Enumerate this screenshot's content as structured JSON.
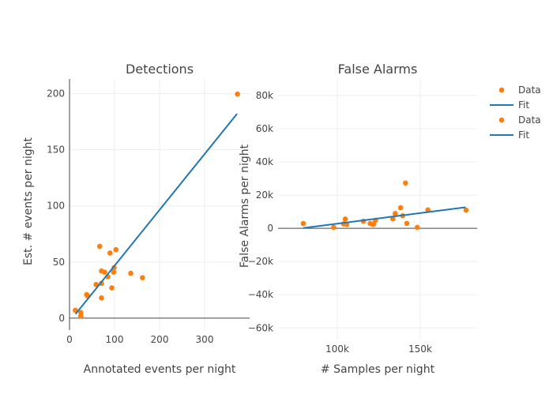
{
  "chart_data": [
    {
      "type": "scatter",
      "title": "Detections",
      "xlabel": "Annotated events per night",
      "ylabel": "Est. # events per night",
      "xlim": [
        0,
        400
      ],
      "ylim": [
        -10.6,
        213
      ],
      "xticks": [
        0,
        100,
        200,
        300
      ],
      "xtick_labels": [
        "0",
        "100",
        "200",
        "300"
      ],
      "yticks": [
        0,
        50,
        100,
        150,
        200
      ],
      "ytick_labels": [
        "0",
        "50",
        "100",
        "150",
        "200"
      ],
      "grid": true,
      "series": [
        {
          "name": "Data",
          "kind": "markers",
          "color": "#ff7f0e",
          "x": [
            373,
            67,
            90,
            103,
            71,
            78,
            99,
            98,
            85,
            136,
            162,
            59,
            71,
            94,
            38,
            40,
            71,
            13,
            25,
            25
          ],
          "y": [
            199.5,
            64,
            58,
            61,
            42,
            41,
            45,
            41,
            37,
            40,
            36,
            30,
            31,
            27,
            21,
            20,
            18,
            7,
            5,
            2
          ]
        },
        {
          "name": "Fit",
          "kind": "line",
          "color": "#1f77b4",
          "x": [
            13.5,
            372
          ],
          "y": [
            3.7,
            182
          ]
        }
      ]
    },
    {
      "type": "scatter",
      "title": "False Alarms",
      "xlabel": "# Samples per night",
      "ylabel": "False Alarms per night",
      "xlim": [
        64300,
        184300
      ],
      "ylim": [
        -67000,
        90000
      ],
      "xticks": [
        100000,
        150000
      ],
      "xtick_labels": [
        "100k",
        "150k"
      ],
      "yticks": [
        -60000,
        -40000,
        -20000,
        0,
        20000,
        40000,
        60000,
        80000
      ],
      "ytick_labels": [
        "−60k",
        "−40k",
        "−20k",
        "0",
        "20k",
        "40k",
        "60k",
        "80k"
      ],
      "grid": true,
      "series": [
        {
          "name": "Data",
          "kind": "markers",
          "color": "#ff7f0e",
          "x": [
            79500,
            97800,
            104800,
            103800,
            105700,
            115700,
            119800,
            121400,
            123000,
            122000,
            133500,
            134900,
            138200,
            139400,
            141100,
            141900,
            148200,
            154600,
            177600
          ],
          "y": [
            2900,
            600,
            5600,
            2700,
            2400,
            4300,
            2900,
            2400,
            4800,
            2700,
            5700,
            8900,
            12400,
            7600,
            27300,
            3000,
            600,
            11100,
            11000
          ]
        },
        {
          "name": "Fit",
          "kind": "line",
          "color": "#1f77b4",
          "x": [
            79500,
            177300
          ],
          "y": [
            200,
            12700
          ]
        }
      ]
    }
  ],
  "legend": {
    "placement": "top-right",
    "entries": [
      {
        "label": "Data",
        "kind": "markers",
        "color": "#ff7f0e"
      },
      {
        "label": "Fit",
        "kind": "line",
        "color": "#1f77b4"
      },
      {
        "label": "Data",
        "kind": "markers",
        "color": "#ff7f0e"
      },
      {
        "label": "Fit",
        "kind": "line",
        "color": "#1f77b4"
      }
    ]
  }
}
